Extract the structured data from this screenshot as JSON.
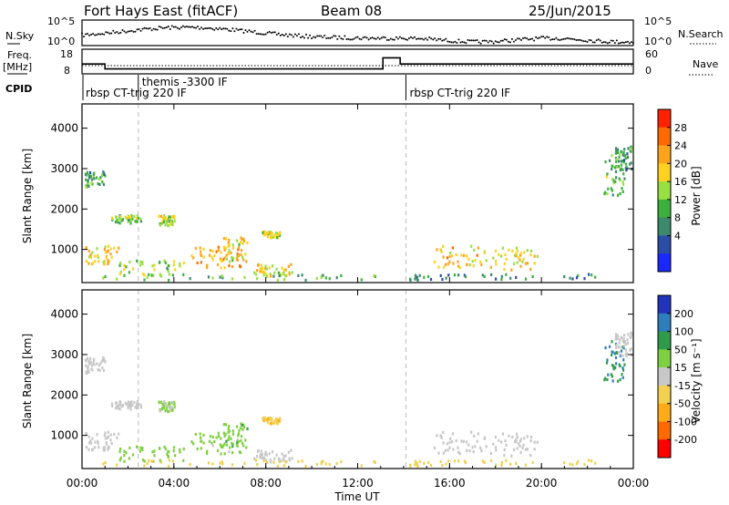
{
  "header": {
    "station": "Fort Hays East (fitACF)",
    "beam": "Beam 08",
    "date": "25/Jun/2015"
  },
  "noise_panel": {
    "left_label": "N.Sky",
    "left_ticks": [
      "10^5",
      "10^0"
    ],
    "right_label": "N.Search",
    "right_ticks": [
      "10^5",
      "10^0"
    ]
  },
  "freq_panel": {
    "left_label_1": "Freq.",
    "left_label_2": "[MHz]",
    "left_ticks": [
      "18",
      "8"
    ],
    "right_label": "Nave",
    "right_ticks": [
      "60",
      "0"
    ]
  },
  "cpid": {
    "label": "CPID",
    "segments": [
      {
        "start_hour": 0.0,
        "text": "rbsp CT-trig 220 IF"
      },
      {
        "start_hour": 2.45,
        "text": "themis -3300 IF"
      },
      {
        "start_hour": 14.1,
        "text": "rbsp CT-trig 220 IF"
      }
    ]
  },
  "power_panel": {
    "ylabel": "Slant Range [km]",
    "colorbar_label": "Power [dB]",
    "colorbar_ticks": [
      "28",
      "24",
      "20",
      "16",
      "12",
      "8",
      "4"
    ],
    "colorbar_colors": [
      "#ff2200",
      "#ff6a00",
      "#ffa31a",
      "#ffd21f",
      "#98df42",
      "#3cb03c",
      "#3c8a6e",
      "#2b4da8",
      "#1a27ff"
    ]
  },
  "velocity_panel": {
    "ylabel": "Slant Range [km]",
    "colorbar_label": "Velocity [m s⁻¹]",
    "colorbar_ticks": [
      "200",
      "100",
      "50",
      "15",
      "-15",
      "-50",
      "-100",
      "-200"
    ],
    "colorbar_colors": [
      "#2233bb",
      "#2e7dbd",
      "#2f9a4a",
      "#7fd040",
      "#c8c8c8",
      "#f2d050",
      "#ffab18",
      "#ff6a00",
      "#ff0000"
    ]
  },
  "axes": {
    "y_ticks": [
      "4000",
      "3000",
      "2000",
      "1000"
    ],
    "x_ticks": [
      "00:00",
      "04:00",
      "08:00",
      "12:00",
      "16:00",
      "20:00",
      "00:00"
    ],
    "xlabel": "Time UT"
  },
  "chart_data": {
    "type": "heatmap",
    "x_range_hours": [
      0,
      24
    ],
    "y_range_km": [
      180,
      4600
    ],
    "frequency_mhz": [
      {
        "hour": 0.0,
        "value": 12.0
      },
      {
        "hour": 1.0,
        "value": 10.0
      },
      {
        "hour": 13.1,
        "value": 14.5
      },
      {
        "hour": 13.85,
        "value": 12.0
      },
      {
        "hour": 24.0,
        "value": 12.0
      }
    ],
    "regions": [
      {
        "t0": 0.1,
        "t1": 1.0,
        "r0": 2500,
        "r1": 2900,
        "power": 10,
        "velocity": 0
      },
      {
        "t0": 1.2,
        "t1": 2.6,
        "r0": 1600,
        "r1": 1800,
        "power": 14,
        "velocity": 0
      },
      {
        "t0": 3.3,
        "t1": 4.0,
        "r0": 1550,
        "r1": 1800,
        "power": 16,
        "velocity": 25
      },
      {
        "t0": 0.1,
        "t1": 1.6,
        "r0": 600,
        "r1": 1050,
        "power": 20,
        "velocity": 0
      },
      {
        "t0": 1.5,
        "t1": 4.5,
        "r0": 300,
        "r1": 700,
        "power": 14,
        "velocity": 30
      },
      {
        "t0": 4.7,
        "t1": 6.9,
        "r0": 500,
        "r1": 1050,
        "power": 22,
        "velocity": 25
      },
      {
        "t0": 6.0,
        "t1": 7.2,
        "r0": 650,
        "r1": 1250,
        "power": 18,
        "velocity": 40
      },
      {
        "t0": 7.3,
        "t1": 9.3,
        "r0": 300,
        "r1": 600,
        "power": 18,
        "velocity": 0
      },
      {
        "t0": 7.8,
        "t1": 8.6,
        "r0": 1250,
        "r1": 1400,
        "power": 16,
        "velocity": -40
      },
      {
        "t0": 0.5,
        "t1": 13.5,
        "r0": 200,
        "r1": 350,
        "power": 12,
        "velocity": -35
      },
      {
        "t0": 13.8,
        "t1": 22.5,
        "r0": 200,
        "r1": 350,
        "power": 8,
        "velocity": -35
      },
      {
        "t0": 15.3,
        "t1": 17.5,
        "r0": 500,
        "r1": 1050,
        "power": 20,
        "velocity": 0
      },
      {
        "t0": 17.5,
        "t1": 19.8,
        "r0": 450,
        "r1": 1000,
        "power": 18,
        "velocity": 0
      },
      {
        "t0": 22.7,
        "t1": 23.6,
        "r0": 2300,
        "r1": 3400,
        "power": 12,
        "velocity": 100
      },
      {
        "t0": 23.2,
        "t1": 23.9,
        "r0": 2900,
        "r1": 3500,
        "power": 10,
        "velocity": 0
      }
    ]
  }
}
